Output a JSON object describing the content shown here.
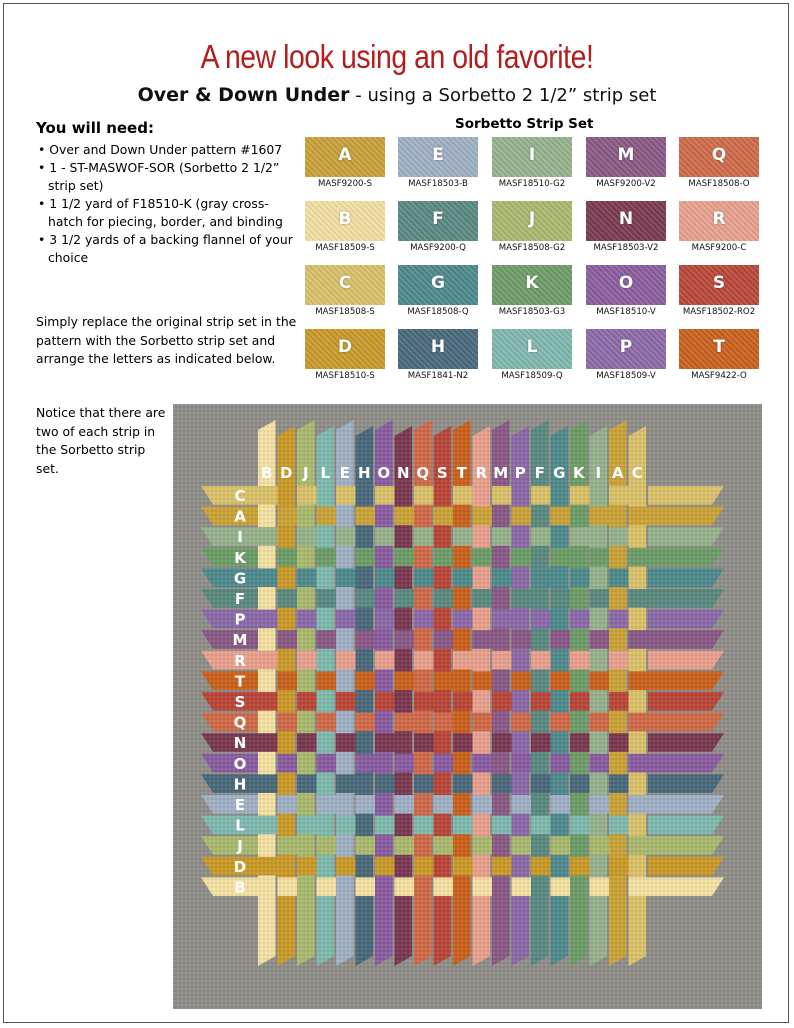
{
  "title": "A new look using an old favorite!",
  "subtitle": {
    "bold": "Over & Down Under",
    "rest": " - using a Sorbetto 2 1/2” strip set"
  },
  "you_need": {
    "heading": "You will need:",
    "items": [
      "Over and Down Under pattern #1607",
      "1 - ST-MASWOF-SOR (Sorbetto 2 1/2” strip set)",
      "1 1/2 yard of F18510-K (gray cross-hatch for piecing, border, and binding",
      "3 1/2 yards of a backing flannel of your choice"
    ]
  },
  "instructions": "Simply replace the original strip set in the pattern with the Sorbetto strip set and arrange the letters as indicated below.",
  "notice": "Notice that there are two of each strip in the Sorbetto strip set.",
  "strip_set": {
    "heading": "Sorbetto Strip Set",
    "swatches": [
      {
        "letter": "A",
        "code": "MASF9200-S",
        "color": "#c9a23a"
      },
      {
        "letter": "E",
        "code": "MASF18503-B",
        "color": "#9fb0c4"
      },
      {
        "letter": "I",
        "code": "MASF18510-G2",
        "color": "#96b28c"
      },
      {
        "letter": "M",
        "code": "MASF9200-V2",
        "color": "#8a5a86"
      },
      {
        "letter": "Q",
        "code": "MASF18508-O",
        "color": "#cf6b4a"
      },
      {
        "letter": "B",
        "code": "MASF18509-S",
        "color": "#f2dfa2"
      },
      {
        "letter": "F",
        "code": "MASF9200-Q",
        "color": "#5a8a80"
      },
      {
        "letter": "J",
        "code": "MASF18508-G2",
        "color": "#a9b96f"
      },
      {
        "letter": "N",
        "code": "MASF18503-V2",
        "color": "#7b3a52"
      },
      {
        "letter": "R",
        "code": "MASF9200-C",
        "color": "#e8a08e"
      },
      {
        "letter": "C",
        "code": "MASF18508-S",
        "color": "#d9c06a"
      },
      {
        "letter": "G",
        "code": "MASF18508-Q",
        "color": "#4f8a8c"
      },
      {
        "letter": "K",
        "code": "MASF18503-G3",
        "color": "#6e9c68"
      },
      {
        "letter": "O",
        "code": "MASF18510-V",
        "color": "#8a5ea0"
      },
      {
        "letter": "S",
        "code": "MASF18502-RO2",
        "color": "#b9473a"
      },
      {
        "letter": "D",
        "code": "MASF18510-S",
        "color": "#c99a2a"
      },
      {
        "letter": "H",
        "code": "MASF1841-N2",
        "color": "#4a6a7c"
      },
      {
        "letter": "L",
        "code": "MASF18509-Q",
        "color": "#7fb8ad"
      },
      {
        "letter": "P",
        "code": "MASF18509-V",
        "color": "#8c6aa8"
      },
      {
        "letter": "T",
        "code": "MASF9422-O",
        "color": "#c9621e"
      }
    ]
  },
  "quilt": {
    "top_letters": [
      "B",
      "D",
      "J",
      "L",
      "E",
      "H",
      "O",
      "N",
      "Q",
      "S",
      "T",
      "R",
      "M",
      "P",
      "F",
      "G",
      "K",
      "I",
      "A",
      "C"
    ],
    "side_letters": [
      "C",
      "A",
      "I",
      "K",
      "G",
      "F",
      "P",
      "M",
      "R",
      "T",
      "S",
      "Q",
      "N",
      "O",
      "H",
      "E",
      "L",
      "J",
      "D",
      "B"
    ],
    "background_color": "#8f8e89"
  }
}
